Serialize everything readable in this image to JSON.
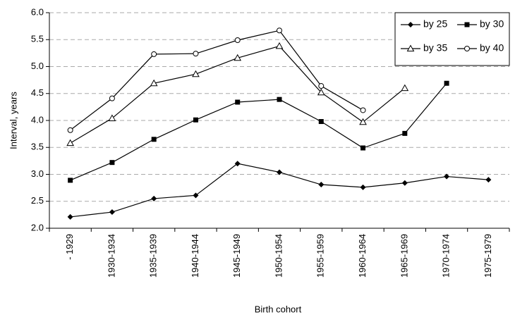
{
  "chart_data": {
    "type": "line",
    "x_label": "Birth cohort",
    "y_label": "Interval, years",
    "categories": [
      "- 1929",
      "1930-1934",
      "1935-1939",
      "1940-1944",
      "1945-1949",
      "1950-1954",
      "1955-1959",
      "1960-1964",
      "1965-1969",
      "1970-1974",
      "1975-1979"
    ],
    "series": [
      {
        "name": "by 25",
        "color": "#000000",
        "marker": "diamond",
        "values": [
          2.21,
          2.3,
          2.55,
          2.61,
          3.2,
          3.04,
          2.81,
          2.76,
          2.84,
          2.96,
          2.9
        ]
      },
      {
        "name": "by 30",
        "color": "#000000",
        "marker": "square",
        "values": [
          2.89,
          3.22,
          3.65,
          4.01,
          4.34,
          4.39,
          3.98,
          3.49,
          3.76,
          4.69,
          null
        ]
      },
      {
        "name": "by 35",
        "color": "#000000",
        "marker": "triangle",
        "values": [
          3.58,
          4.04,
          4.69,
          4.86,
          5.16,
          5.38,
          4.52,
          3.97,
          4.6,
          null,
          null
        ]
      },
      {
        "name": "by 40",
        "color": "#000000",
        "marker": "circle",
        "values": [
          3.82,
          4.41,
          5.23,
          5.24,
          5.49,
          5.67,
          4.64,
          4.19,
          null,
          null,
          null
        ]
      }
    ],
    "ylim": [
      2,
      6
    ],
    "yticks": [
      {
        "value": 2,
        "label": "2.0"
      },
      2.5,
      {
        "value": 3,
        "label": "3.0"
      },
      3.5,
      {
        "value": 4,
        "label": "4.0"
      },
      4.5,
      {
        "value": 5,
        "label": "5.0"
      },
      5.5,
      {
        "value": 6,
        "label": "6.0"
      }
    ],
    "grid": true,
    "legend": "top-right"
  }
}
